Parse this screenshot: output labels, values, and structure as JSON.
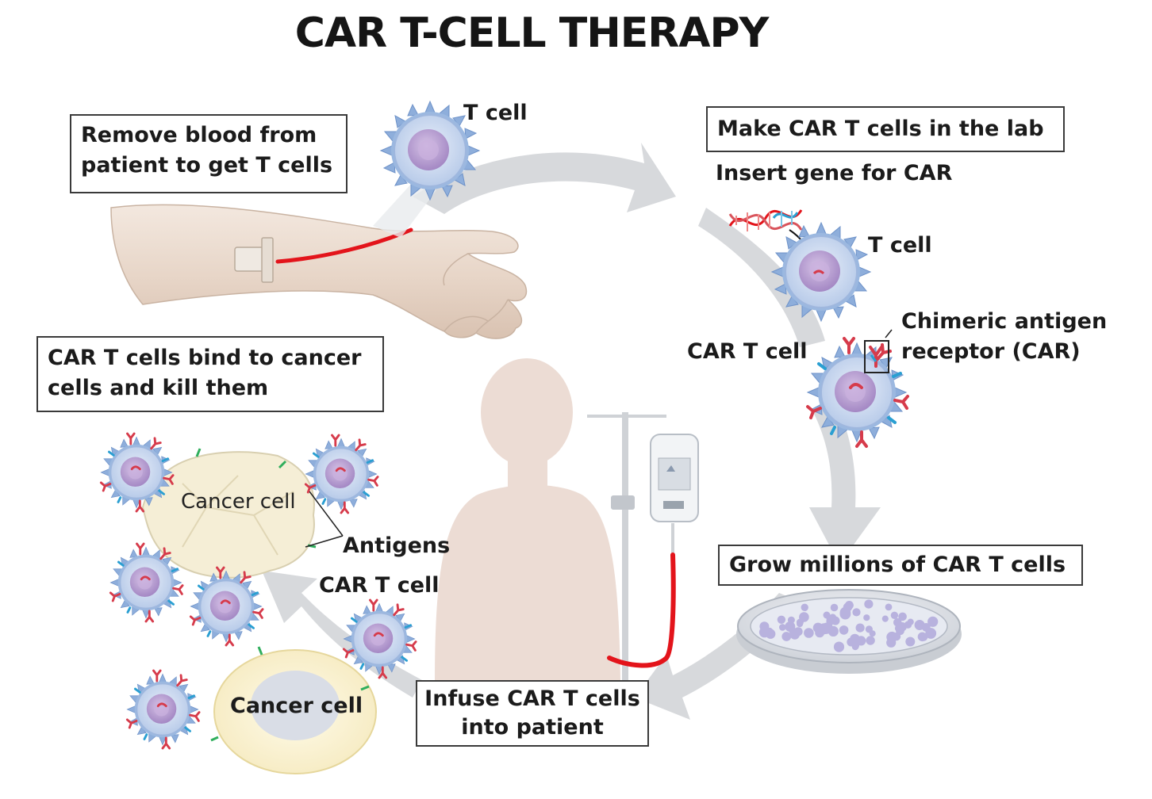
{
  "title": "CAR T-CELL THERAPY",
  "steps": {
    "remove_blood": {
      "line1": "Remove blood from",
      "line2": "patient to get T cells"
    },
    "make_lab": "Make CAR T cells in the lab",
    "grow": "Grow millions of CAR T cells",
    "infuse": {
      "line1": "Infuse CAR T cells",
      "line2": "into patient"
    },
    "bind_kill": {
      "line1": "CAR T cells bind to cancer",
      "line2": "cells and kill them"
    }
  },
  "labels": {
    "t_cell_top": "T cell",
    "insert_gene": "Insert gene for CAR",
    "t_cell_lab": "T cell",
    "car_t_cell_lab": "CAR T cell",
    "chimeric_line1": "Chimeric antigen",
    "chimeric_line2": "receptor (CAR)",
    "cancer_cell_top": "Cancer cell",
    "antigens": "Antigens",
    "car_t_cell_bottom": "CAR T cell",
    "cancer_cell_bottom": "Cancer cell"
  },
  "colors": {
    "arrow": "#d6d8da",
    "tcell_spikes": "#8fb0dc",
    "tcell_body": "#c9d6ec",
    "nucleus": "#b99ed0",
    "blood_line": "#e3141b",
    "skin": "#eadbd0",
    "silhouette": "#ecdcd4",
    "cancer_cell": "#fbf3d6"
  }
}
